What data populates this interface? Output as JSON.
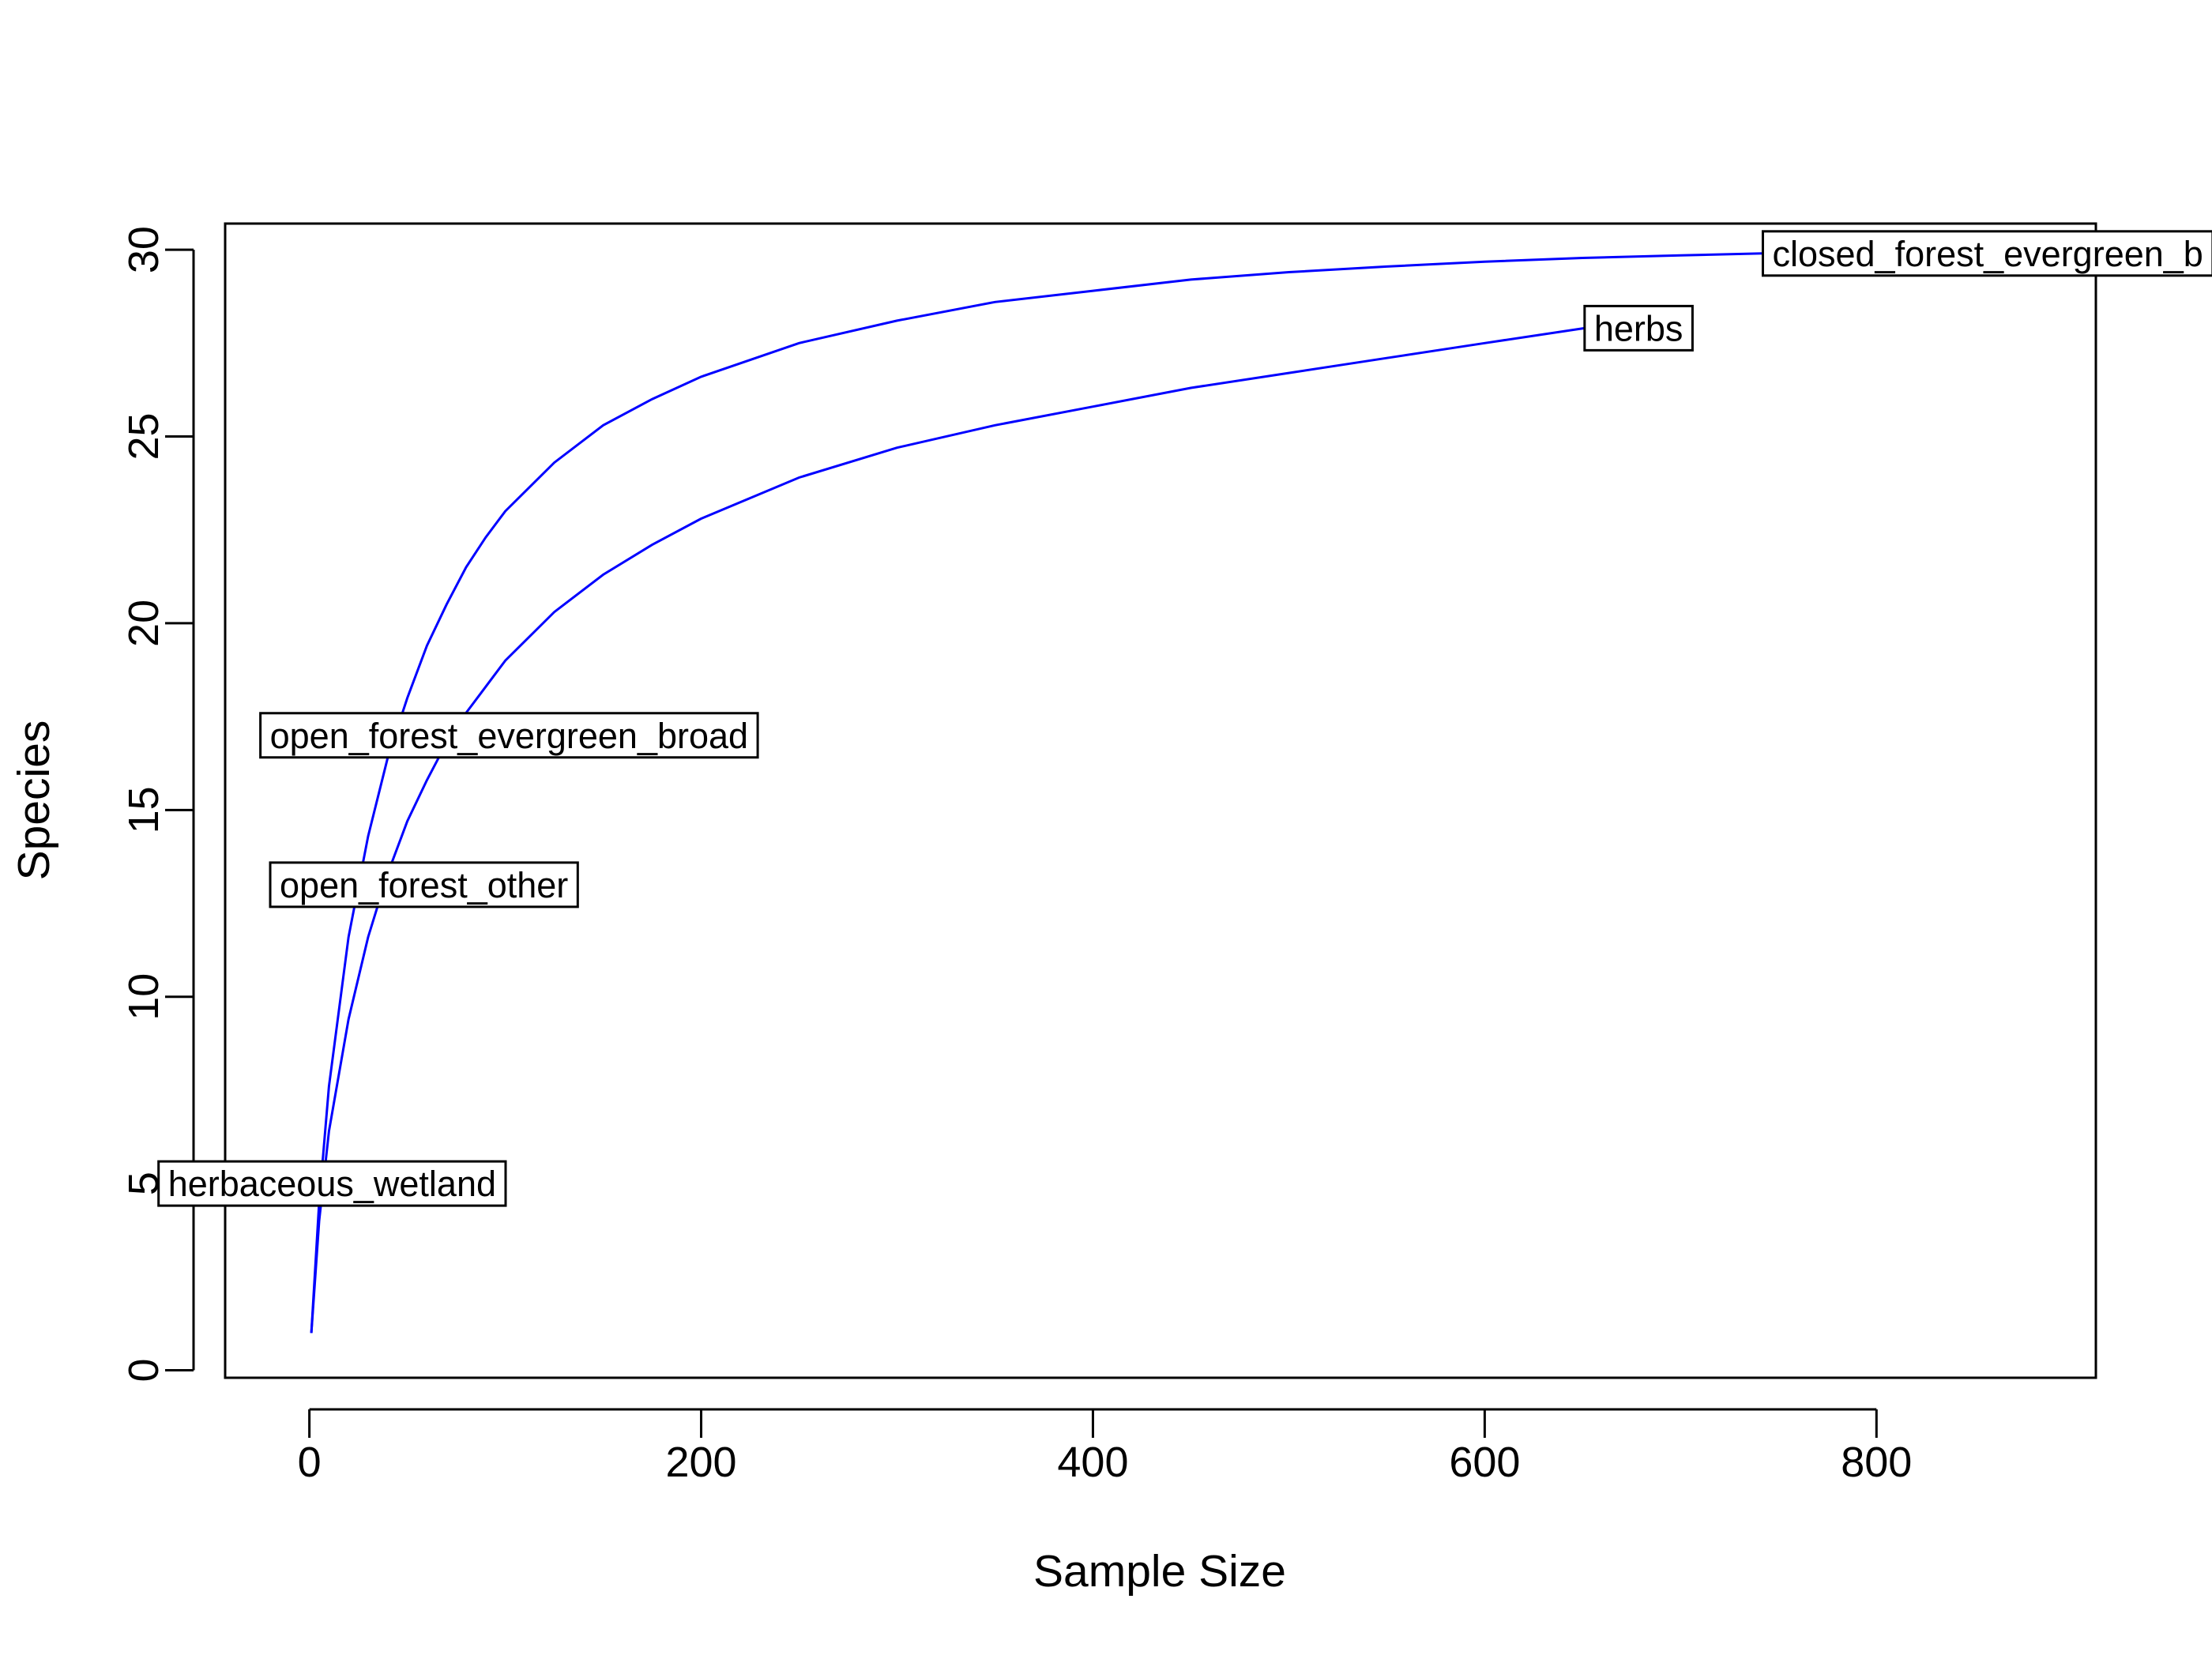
{
  "chart_data": {
    "type": "line",
    "title": "",
    "xlabel": "Sample Size",
    "ylabel": "Species",
    "xlim": [
      -43,
      912
    ],
    "ylim": [
      -0.2,
      30.7
    ],
    "xticks": [
      "0",
      "200",
      "400",
      "600",
      "800"
    ],
    "yticks": [
      "0",
      "5",
      "10",
      "15",
      "20",
      "25",
      "30"
    ],
    "grid": false,
    "line_color": "#0000ff",
    "series": [
      {
        "name": "closed_forest_evergreen_broad",
        "x": [
          1,
          5,
          10,
          20,
          30,
          40,
          50,
          60,
          70,
          80,
          90,
          100,
          125,
          150,
          175,
          200,
          250,
          300,
          350,
          400,
          450,
          500,
          550,
          600,
          650,
          700,
          742
        ],
        "y": [
          1.0,
          4.5,
          7.6,
          11.6,
          14.3,
          16.4,
          18.0,
          19.4,
          20.5,
          21.5,
          22.3,
          23.0,
          24.3,
          25.3,
          26.0,
          26.6,
          27.5,
          28.1,
          28.6,
          28.9,
          29.2,
          29.4,
          29.55,
          29.68,
          29.78,
          29.85,
          29.9
        ]
      },
      {
        "name": "herbs",
        "x": [
          1,
          5,
          10,
          20,
          30,
          40,
          50,
          60,
          70,
          80,
          90,
          100,
          125,
          150,
          175,
          200,
          250,
          300,
          350,
          400,
          450,
          500,
          550,
          600,
          651
        ],
        "y": [
          1.0,
          4.0,
          6.4,
          9.4,
          11.6,
          13.3,
          14.7,
          15.8,
          16.8,
          17.6,
          18.3,
          19.0,
          20.3,
          21.3,
          22.1,
          22.8,
          23.9,
          24.7,
          25.3,
          25.8,
          26.3,
          26.7,
          27.1,
          27.5,
          27.9
        ]
      }
    ],
    "labels": [
      {
        "text": "closed_forest_evergreen_b",
        "x": 742,
        "y": 29.9
      },
      {
        "text": "herbs",
        "x": 651,
        "y": 27.9
      },
      {
        "text": "open_forest_evergreen_broad",
        "x": -25,
        "y": 17.0
      },
      {
        "text": "open_forest_other",
        "x": -20,
        "y": 13.0
      },
      {
        "text": "herbaceous_wetland",
        "x": -77,
        "y": 5.0
      }
    ]
  }
}
